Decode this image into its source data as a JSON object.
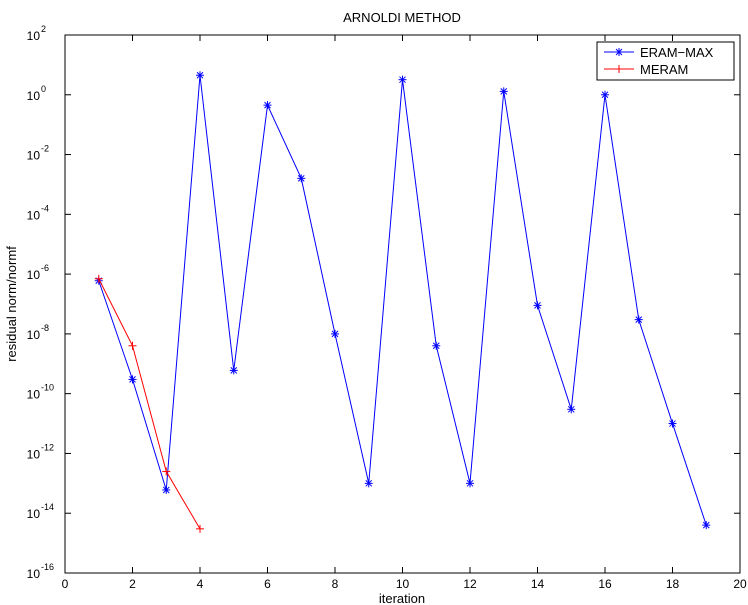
{
  "chart_data": {
    "type": "line",
    "title": "ARNOLDI METHOD",
    "xlabel": "iteration",
    "ylabel": "residual norm/normf",
    "xlim": [
      0,
      20
    ],
    "ylim_exponents": [
      -16,
      2
    ],
    "yscale": "log",
    "grid": false,
    "legend_position": "top-right",
    "x_ticks": [
      "0",
      "2",
      "4",
      "6",
      "8",
      "10",
      "12",
      "14",
      "16",
      "18",
      "20"
    ],
    "y_tick_exponents": [
      "-16",
      "-14",
      "-12",
      "-10",
      "-8",
      "-6",
      "-4",
      "-2",
      "0",
      "2"
    ],
    "y_tick_base": "10",
    "series": [
      {
        "name": "ERAM−MAX",
        "color": "#0000ff",
        "marker": "asterisk",
        "x": [
          1,
          2,
          3,
          4,
          5,
          6,
          7,
          8,
          9,
          10,
          11,
          12,
          13,
          14,
          15,
          16,
          17,
          18,
          19
        ],
        "y": [
          6e-07,
          3e-10,
          6e-14,
          4.5,
          6e-10,
          0.45,
          0.0016,
          1e-08,
          1e-13,
          3.2,
          4e-09,
          1e-13,
          1.3,
          9e-08,
          3e-11,
          1.0,
          3e-08,
          1e-11,
          4e-15
        ]
      },
      {
        "name": "MERAM",
        "color": "#ff0000",
        "marker": "plus",
        "x": [
          1,
          2,
          3,
          4
        ],
        "y": [
          7e-07,
          4e-09,
          2.5e-13,
          3e-15
        ]
      }
    ]
  }
}
